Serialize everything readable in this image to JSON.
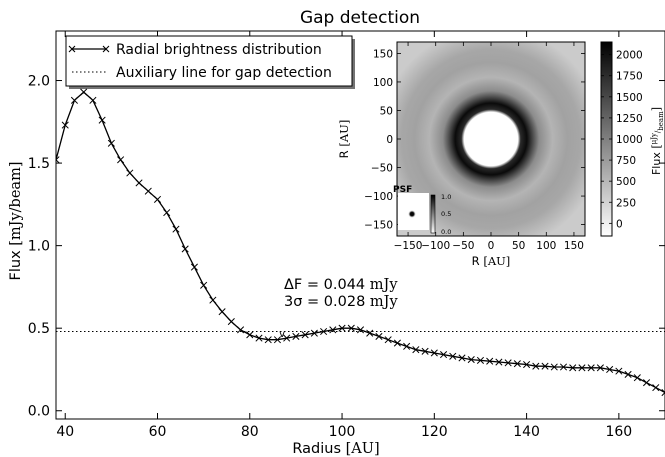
{
  "chart_data": {
    "type": "line",
    "title": "Gap detection",
    "xlabel_word": "Radius",
    "xlabel_unit": "[AU]",
    "ylabel_word": "Flux",
    "ylabel_unit": "[mJy/beam]",
    "xlim": [
      38,
      170
    ],
    "ylim": [
      -0.05,
      2.3
    ],
    "xticks": [
      40,
      60,
      80,
      100,
      120,
      140,
      160
    ],
    "yticks": [
      0.0,
      0.5,
      1.0,
      1.5,
      2.0
    ],
    "legend": {
      "placement": "top-left",
      "entries": [
        "Radial brightness distribution",
        "Auxiliary line for gap detection"
      ]
    },
    "series": [
      {
        "name": "Radial brightness distribution",
        "marker": "x",
        "color": "#000000",
        "x": [
          38,
          40,
          42,
          44,
          46,
          48,
          50,
          52,
          54,
          56,
          58,
          60,
          62,
          64,
          66,
          68,
          70,
          72,
          74,
          76,
          78,
          80,
          82,
          84,
          86,
          88,
          90,
          92,
          94,
          96,
          98,
          100,
          102,
          104,
          106,
          108,
          110,
          112,
          114,
          116,
          118,
          120,
          122,
          124,
          126,
          128,
          130,
          132,
          134,
          136,
          138,
          140,
          142,
          144,
          146,
          148,
          150,
          152,
          154,
          156,
          158,
          160,
          162,
          164,
          166,
          168,
          170
        ],
        "y": [
          1.52,
          1.73,
          1.88,
          1.93,
          1.88,
          1.76,
          1.62,
          1.52,
          1.44,
          1.38,
          1.33,
          1.28,
          1.2,
          1.1,
          0.98,
          0.87,
          0.76,
          0.67,
          0.6,
          0.54,
          0.49,
          0.46,
          0.44,
          0.43,
          0.43,
          0.44,
          0.45,
          0.46,
          0.47,
          0.48,
          0.49,
          0.5,
          0.5,
          0.49,
          0.47,
          0.45,
          0.43,
          0.41,
          0.39,
          0.37,
          0.36,
          0.35,
          0.34,
          0.33,
          0.32,
          0.31,
          0.305,
          0.3,
          0.295,
          0.29,
          0.285,
          0.28,
          0.27,
          0.27,
          0.265,
          0.265,
          0.26,
          0.26,
          0.26,
          0.26,
          0.25,
          0.24,
          0.22,
          0.2,
          0.17,
          0.14,
          0.11
        ]
      },
      {
        "name": "Auxiliary line for gap detection",
        "style": "dotted",
        "color": "#000000",
        "y_constant": 0.48
      }
    ],
    "gap_marker": {
      "x": 87,
      "y": 0.46,
      "label": "v"
    },
    "annotations": [
      {
        "prefix": "ΔF = ",
        "value": "0.044",
        "unit": "mJy"
      },
      {
        "prefix": "3σ = ",
        "value": "0.028",
        "unit": "mJy"
      }
    ],
    "inset": {
      "type": "heatmap",
      "xlabel_word": "R",
      "xlabel_unit": "[AU]",
      "ylabel_word": "R",
      "ylabel_unit": "[AU]",
      "xticks": [
        -150,
        -100,
        -50,
        0,
        50,
        100,
        150
      ],
      "yticks": [
        150,
        100,
        50,
        0,
        -50,
        -100,
        -150
      ],
      "range": [
        -170,
        170
      ],
      "colorbar": {
        "label_word": "Flux",
        "label_unit_num": "μJy",
        "label_unit_den": "beam",
        "ticks": [
          2000,
          1750,
          1500,
          1250,
          1000,
          750,
          500,
          250,
          0
        ],
        "range": [
          -150,
          2150
        ],
        "gradient": [
          "#ffffff",
          "#000000"
        ]
      },
      "psf": {
        "label": "PSF",
        "colorbar_ticks": [
          "1.0",
          "0.5",
          "0.0"
        ]
      },
      "features": [
        {
          "kind": "central bright blob",
          "radius_au": 28,
          "value": 0
        },
        {
          "kind": "dark ring",
          "radius_au": 40,
          "value": 2000
        },
        {
          "kind": "gray ring",
          "radius_au": 105,
          "value": 500
        }
      ]
    }
  }
}
